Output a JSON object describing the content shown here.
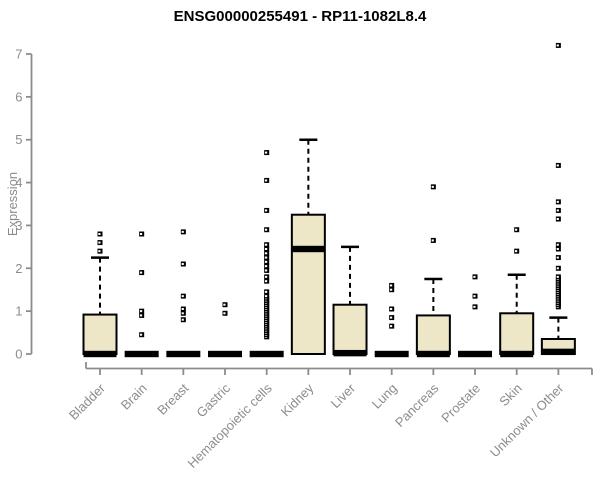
{
  "header": {
    "title": "ENSG00000255491 - RP11-1082L8.4"
  },
  "chart_data": {
    "type": "boxplot",
    "title": "ENSG00000255491 - RP11-1082L8.4",
    "xlabel": "",
    "ylabel": "Expression",
    "ylim": [
      0,
      7.25
    ],
    "yticks": [
      0,
      1,
      2,
      3,
      4,
      5,
      6,
      7
    ],
    "grid": false,
    "legend": "none",
    "colors": {
      "box_fill": "#ede7c7",
      "box_stroke": "#000000",
      "median": "#000000",
      "whisker": "#000000",
      "outlier": "#000000",
      "axis": "#8c8c8c",
      "tick_text": "#8c8c8c",
      "title_text": "#000000"
    },
    "categories": [
      "Bladder",
      "Brain",
      "Breast",
      "Gastric",
      "Hematopoietic cells",
      "Kidney",
      "Liver",
      "Lung",
      "Pancreas",
      "Prostate",
      "Skin",
      "Unknown / Other"
    ],
    "series": [
      {
        "name": "Bladder",
        "q1": 0,
        "median": 0,
        "q3": 0.92,
        "whisker_low": 0,
        "whisker_high": 2.25,
        "outliers": [
          2.4,
          2.6,
          2.8
        ]
      },
      {
        "name": "Brain",
        "q1": 0,
        "median": 0,
        "q3": 0,
        "whisker_low": 0,
        "whisker_high": 0,
        "outliers": [
          0.45,
          0.9,
          1.0,
          1.9,
          2.8
        ]
      },
      {
        "name": "Breast",
        "q1": 0,
        "median": 0,
        "q3": 0,
        "whisker_low": 0,
        "whisker_high": 0,
        "outliers": [
          0.8,
          0.95,
          1.05,
          1.35,
          2.1,
          2.85
        ]
      },
      {
        "name": "Gastric",
        "q1": 0,
        "median": 0,
        "q3": 0,
        "whisker_low": 0,
        "whisker_high": 0,
        "outliers": [
          0.95,
          1.15
        ]
      },
      {
        "name": "Hematopoietic cells",
        "q1": 0,
        "median": 0,
        "q3": 0,
        "whisker_low": 0,
        "whisker_high": 0,
        "outliers": [
          0.4,
          0.45,
          0.5,
          0.55,
          0.6,
          0.65,
          0.7,
          0.75,
          0.8,
          0.85,
          0.9,
          0.95,
          1.0,
          1.05,
          1.1,
          1.15,
          1.2,
          1.25,
          1.3,
          1.35,
          1.45,
          1.7,
          1.8,
          1.95,
          2.05,
          2.15,
          2.25,
          2.35,
          2.45,
          2.55,
          2.9,
          3.35,
          4.05,
          4.7
        ]
      },
      {
        "name": "Kidney",
        "q1": 0,
        "median": 2.45,
        "q3": 3.25,
        "whisker_low": 0,
        "whisker_high": 5.0,
        "outliers": []
      },
      {
        "name": "Liver",
        "q1": 0,
        "median": 0.02,
        "q3": 1.15,
        "whisker_low": 0,
        "whisker_high": 2.5,
        "outliers": []
      },
      {
        "name": "Lung",
        "q1": 0,
        "median": 0,
        "q3": 0,
        "whisker_low": 0,
        "whisker_high": 0,
        "outliers": [
          0.65,
          0.85,
          1.05,
          1.5,
          1.6
        ]
      },
      {
        "name": "Pancreas",
        "q1": 0,
        "median": 0,
        "q3": 0.9,
        "whisker_low": 0,
        "whisker_high": 1.75,
        "outliers": [
          2.65,
          3.9
        ]
      },
      {
        "name": "Prostate",
        "q1": 0,
        "median": 0,
        "q3": 0,
        "whisker_low": 0,
        "whisker_high": 0,
        "outliers": [
          1.1,
          1.35,
          1.8
        ]
      },
      {
        "name": "Skin",
        "q1": 0,
        "median": 0,
        "q3": 0.95,
        "whisker_low": 0,
        "whisker_high": 1.85,
        "outliers": [
          2.4,
          2.9
        ]
      },
      {
        "name": "Unknown / Other",
        "q1": 0,
        "median": 0.05,
        "q3": 0.35,
        "whisker_low": 0,
        "whisker_high": 0.85,
        "outliers": [
          1.1,
          1.15,
          1.2,
          1.25,
          1.3,
          1.35,
          1.4,
          1.45,
          1.5,
          1.55,
          1.6,
          1.65,
          1.7,
          1.75,
          1.8,
          2.0,
          2.25,
          2.45,
          2.55,
          3.15,
          3.35,
          3.55,
          4.4,
          7.2
        ]
      }
    ]
  }
}
